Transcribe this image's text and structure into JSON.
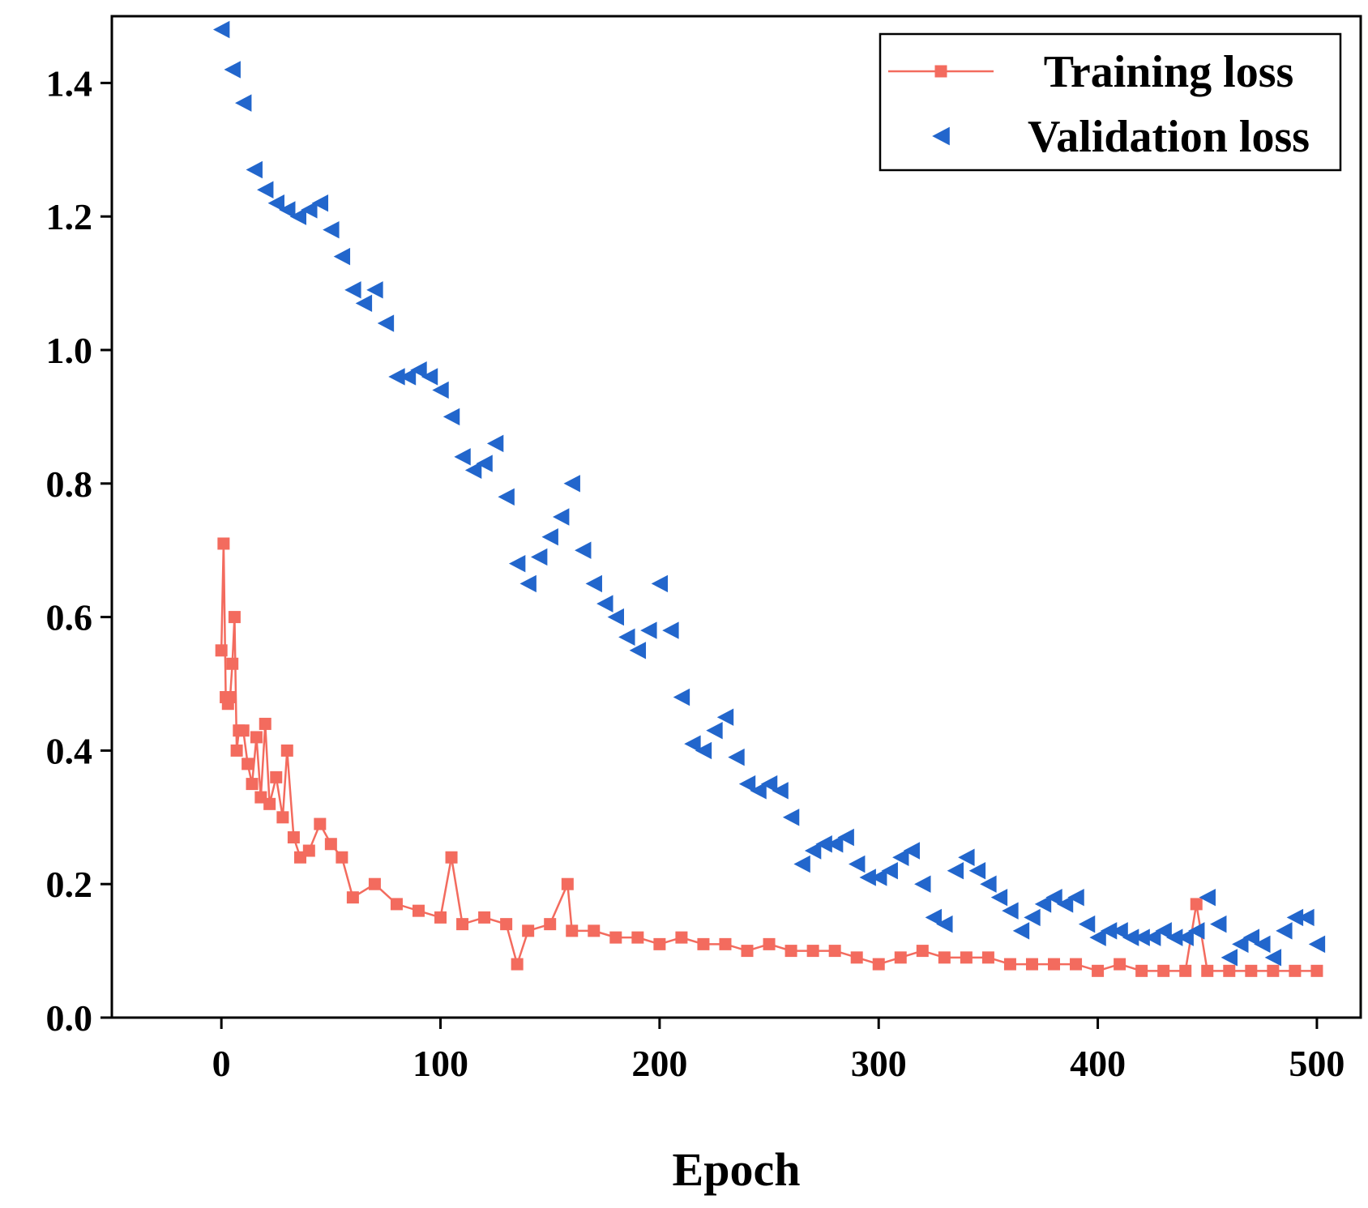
{
  "chart_data": {
    "type": "line",
    "title": "",
    "xlabel": "Epoch",
    "ylabel": "",
    "xlim": [
      -50,
      520
    ],
    "ylim": [
      0.0,
      1.5
    ],
    "xticks": [
      0,
      100,
      200,
      300,
      400,
      500
    ],
    "yticks": [
      0.0,
      0.2,
      0.4,
      0.6,
      0.8,
      1.0,
      1.2,
      1.4
    ],
    "xtick_labels": [
      "0",
      "100",
      "200",
      "300",
      "400",
      "500"
    ],
    "ytick_labels": [
      "0.0",
      "0.2",
      "0.4",
      "0.6",
      "0.8",
      "1.0",
      "1.2",
      "1.4"
    ],
    "grid": false,
    "legend_position": "top-right",
    "series": [
      {
        "name": "Training loss",
        "color": "#f36b5e",
        "marker": "square",
        "connected": true,
        "x": [
          0,
          1,
          2,
          3,
          4,
          5,
          6,
          7,
          8,
          10,
          12,
          14,
          16,
          18,
          20,
          22,
          25,
          28,
          30,
          33,
          36,
          40,
          45,
          50,
          55,
          60,
          70,
          80,
          90,
          100,
          105,
          110,
          120,
          130,
          135,
          140,
          150,
          158,
          160,
          170,
          180,
          190,
          200,
          210,
          220,
          230,
          240,
          250,
          260,
          270,
          280,
          290,
          300,
          310,
          320,
          330,
          340,
          350,
          360,
          370,
          380,
          390,
          400,
          410,
          420,
          430,
          440,
          445,
          450,
          460,
          470,
          480,
          490,
          500
        ],
        "values": [
          0.55,
          0.71,
          0.48,
          0.47,
          0.48,
          0.53,
          0.6,
          0.4,
          0.43,
          0.43,
          0.38,
          0.35,
          0.42,
          0.33,
          0.44,
          0.32,
          0.36,
          0.3,
          0.4,
          0.27,
          0.24,
          0.25,
          0.29,
          0.26,
          0.24,
          0.18,
          0.2,
          0.17,
          0.16,
          0.15,
          0.24,
          0.14,
          0.15,
          0.14,
          0.08,
          0.13,
          0.14,
          0.2,
          0.13,
          0.13,
          0.12,
          0.12,
          0.11,
          0.12,
          0.11,
          0.11,
          0.1,
          0.11,
          0.1,
          0.1,
          0.1,
          0.09,
          0.08,
          0.09,
          0.1,
          0.09,
          0.09,
          0.09,
          0.08,
          0.08,
          0.08,
          0.08,
          0.07,
          0.08,
          0.07,
          0.07,
          0.07,
          0.17,
          0.07,
          0.07,
          0.07,
          0.07,
          0.07,
          0.07
        ]
      },
      {
        "name": "Validation loss",
        "color": "#2266cc",
        "marker": "triangle-left",
        "connected": false,
        "x": [
          0,
          5,
          10,
          15,
          20,
          25,
          30,
          35,
          40,
          45,
          50,
          55,
          60,
          65,
          70,
          75,
          80,
          85,
          90,
          95,
          100,
          105,
          110,
          115,
          120,
          125,
          130,
          135,
          140,
          145,
          150,
          155,
          160,
          165,
          170,
          175,
          180,
          185,
          190,
          195,
          200,
          205,
          210,
          215,
          220,
          225,
          230,
          235,
          240,
          245,
          250,
          255,
          260,
          265,
          270,
          275,
          280,
          285,
          290,
          295,
          300,
          305,
          310,
          315,
          320,
          325,
          330,
          335,
          340,
          345,
          350,
          355,
          360,
          365,
          370,
          375,
          380,
          385,
          390,
          395,
          400,
          405,
          410,
          415,
          420,
          425,
          430,
          435,
          440,
          445,
          450,
          455,
          460,
          465,
          470,
          475,
          480,
          485,
          490,
          495,
          500
        ],
        "values": [
          1.48,
          1.42,
          1.37,
          1.27,
          1.24,
          1.22,
          1.21,
          1.2,
          1.21,
          1.22,
          1.18,
          1.14,
          1.09,
          1.07,
          1.09,
          1.04,
          0.96,
          0.96,
          0.97,
          0.96,
          0.94,
          0.9,
          0.84,
          0.82,
          0.83,
          0.86,
          0.78,
          0.68,
          0.65,
          0.69,
          0.72,
          0.75,
          0.8,
          0.7,
          0.65,
          0.62,
          0.6,
          0.57,
          0.55,
          0.58,
          0.65,
          0.58,
          0.48,
          0.41,
          0.4,
          0.43,
          0.45,
          0.39,
          0.35,
          0.34,
          0.35,
          0.34,
          0.3,
          0.23,
          0.25,
          0.26,
          0.26,
          0.27,
          0.23,
          0.21,
          0.21,
          0.22,
          0.24,
          0.25,
          0.2,
          0.15,
          0.14,
          0.22,
          0.24,
          0.22,
          0.2,
          0.18,
          0.16,
          0.13,
          0.15,
          0.17,
          0.18,
          0.17,
          0.18,
          0.14,
          0.12,
          0.13,
          0.13,
          0.12,
          0.12,
          0.12,
          0.13,
          0.12,
          0.12,
          0.13,
          0.18,
          0.14,
          0.09,
          0.11,
          0.12,
          0.11,
          0.09,
          0.13,
          0.15,
          0.15,
          0.11
        ]
      }
    ]
  }
}
